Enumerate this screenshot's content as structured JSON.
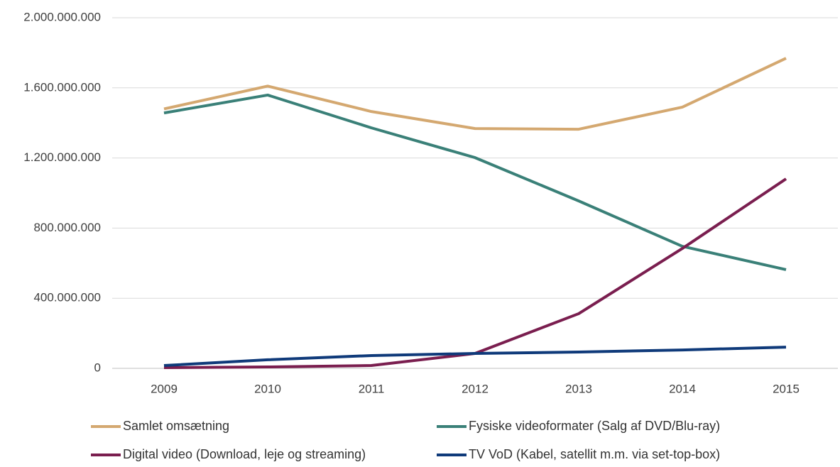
{
  "chart_data": {
    "type": "line",
    "categories": [
      "2009",
      "2010",
      "2011",
      "2012",
      "2013",
      "2014",
      "2015"
    ],
    "series": [
      {
        "name": "Samlet omsætning",
        "color": "#d4a870",
        "values": [
          1480000000,
          1610000000,
          1465000000,
          1368000000,
          1364000000,
          1490000000,
          1769000000
        ]
      },
      {
        "name": "Fysiske videoformater (Salg af DVD/Blu-ray)",
        "color": "#3a8078",
        "values": [
          1457000000,
          1559000000,
          1372000000,
          1202000000,
          955000000,
          696000000,
          563000000
        ]
      },
      {
        "name": "Digital video (Download, leje og streaming)",
        "color": "#7a1e4f",
        "values": [
          4000000,
          8000000,
          16000000,
          85000000,
          312000000,
          684000000,
          1081000000
        ]
      },
      {
        "name": "TV VoD (Kabel, satellit m.m. via set-top-box)",
        "color": "#0f3a7a",
        "values": [
          16000000,
          49000000,
          73000000,
          85000000,
          93000000,
          105000000,
          121000000
        ]
      }
    ],
    "ylim": [
      0,
      2000000000
    ],
    "yticks": [
      0,
      {
        "value": 400000000,
        "label": "400.000.000"
      },
      {
        "value": 800000000,
        "label": "800.000.000"
      },
      {
        "value": 1200000000,
        "label": "1.200.000.000"
      },
      {
        "value": 1600000000,
        "label": "1.600.000.000"
      },
      {
        "value": 2000000000,
        "label": "2.000.000.000"
      }
    ],
    "grid": true
  }
}
